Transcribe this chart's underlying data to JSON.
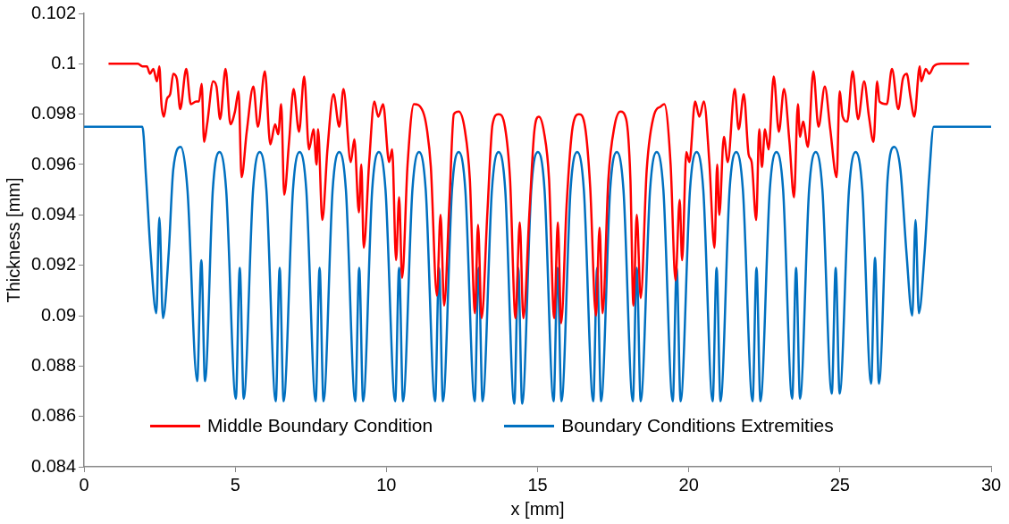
{
  "chart_data": {
    "type": "line",
    "xlabel": "x [mm]",
    "ylabel": "Thickness [mm]",
    "xlim": [
      0,
      30
    ],
    "xticks": [
      0,
      5,
      10,
      15,
      20,
      25,
      30
    ],
    "ylim": [
      0.084,
      0.102
    ],
    "yticks": [
      0.084,
      0.086,
      0.088,
      0.09,
      0.092,
      0.094,
      0.096,
      0.098,
      0.1,
      0.102
    ],
    "grid": false,
    "legend": "bottom",
    "marker": "none",
    "line_style": "solid",
    "series": [
      {
        "name": "Middle Boundary Condition",
        "color": "#ff0000",
        "x": [
          0.81,
          1.78,
          1.93,
          2.08,
          2.18,
          2.29,
          2.41,
          2.49,
          2.56,
          2.64,
          2.74,
          2.85,
          2.95,
          3.07,
          3.18,
          3.38,
          3.53,
          3.71,
          3.8,
          3.89,
          3.97,
          4.07,
          4.27,
          4.38,
          4.5,
          4.68,
          4.84,
          4.99,
          5.11,
          5.21,
          5.38,
          5.6,
          5.75,
          5.98,
          6.16,
          6.32,
          6.42,
          6.52,
          6.62,
          6.78,
          6.93,
          7.11,
          7.28,
          7.44,
          7.59,
          7.69,
          7.74,
          7.88,
          8.05,
          8.25,
          8.44,
          8.58,
          8.82,
          8.94,
          9.09,
          9.17,
          9.25,
          9.43,
          9.6,
          9.73,
          9.89,
          10.09,
          10.19,
          10.32,
          10.42,
          10.52,
          10.7,
          10.91,
          11.21,
          11.34,
          11.47,
          11.67,
          11.79,
          11.91,
          12.08,
          12.23,
          12.39,
          12.59,
          12.76,
          12.93,
          13.03,
          13.15,
          13.34,
          13.51,
          13.71,
          13.92,
          14.09,
          14.27,
          14.41,
          14.53,
          14.73,
          14.89,
          15.04,
          15.21,
          15.38,
          15.55,
          15.67,
          15.78,
          15.96,
          16.16,
          16.37,
          16.57,
          16.74,
          16.93,
          17.05,
          17.15,
          17.34,
          17.54,
          17.74,
          17.93,
          18.07,
          18.17,
          18.28,
          18.41,
          18.61,
          18.86,
          19.07,
          19.19,
          19.4,
          19.56,
          19.7,
          19.78,
          19.92,
          20.02,
          20.21,
          20.35,
          20.5,
          20.68,
          20.85,
          20.94,
          21.01,
          21.16,
          21.29,
          21.52,
          21.65,
          21.82,
          21.98,
          22.08,
          22.23,
          22.33,
          22.42,
          22.52,
          22.64,
          22.81,
          22.98,
          23.15,
          23.33,
          23.48,
          23.61,
          23.68,
          23.78,
          23.94,
          24.12,
          24.29,
          24.5,
          24.68,
          24.89,
          24.99,
          25.09,
          25.24,
          25.42,
          25.6,
          25.8,
          25.96,
          26.11,
          26.23,
          26.31,
          26.55,
          26.72,
          26.93,
          27.08,
          27.21,
          27.33,
          27.46,
          27.64,
          27.69,
          27.84,
          27.95,
          28.1,
          28.35,
          29.27
        ],
        "values": [
          0.1,
          0.1,
          0.0999,
          0.0999,
          0.0996,
          0.0998,
          0.0993,
          0.0999,
          0.0984,
          0.0979,
          0.0986,
          0.0988,
          0.0996,
          0.0994,
          0.0982,
          0.0998,
          0.0984,
          0.0985,
          0.0985,
          0.0992,
          0.0969,
          0.0976,
          0.0993,
          0.0991,
          0.0978,
          0.0998,
          0.0976,
          0.0981,
          0.0989,
          0.0955,
          0.0973,
          0.0991,
          0.0975,
          0.0997,
          0.0968,
          0.0976,
          0.0972,
          0.0984,
          0.0948,
          0.0969,
          0.099,
          0.0973,
          0.0995,
          0.0966,
          0.0974,
          0.096,
          0.0974,
          0.0938,
          0.0966,
          0.0988,
          0.0975,
          0.099,
          0.0961,
          0.097,
          0.0941,
          0.096,
          0.0927,
          0.0961,
          0.0985,
          0.0979,
          0.0984,
          0.0961,
          0.0966,
          0.0922,
          0.0947,
          0.0915,
          0.096,
          0.0984,
          0.0981,
          0.0974,
          0.0959,
          0.0908,
          0.094,
          0.0904,
          0.0944,
          0.098,
          0.0981,
          0.0974,
          0.0954,
          0.0901,
          0.0936,
          0.0899,
          0.0941,
          0.0976,
          0.098,
          0.0975,
          0.0954,
          0.0899,
          0.0937,
          0.0899,
          0.0941,
          0.0973,
          0.0979,
          0.0973,
          0.0954,
          0.0899,
          0.0937,
          0.0897,
          0.0944,
          0.0975,
          0.098,
          0.0975,
          0.0951,
          0.09,
          0.0935,
          0.0901,
          0.0954,
          0.0975,
          0.0981,
          0.0978,
          0.0954,
          0.0904,
          0.094,
          0.0907,
          0.0958,
          0.098,
          0.0983,
          0.0984,
          0.096,
          0.0914,
          0.0946,
          0.0922,
          0.0965,
          0.0961,
          0.0985,
          0.0979,
          0.0985,
          0.0961,
          0.0927,
          0.096,
          0.094,
          0.0971,
          0.0961,
          0.099,
          0.0974,
          0.0988,
          0.0964,
          0.0961,
          0.0938,
          0.0974,
          0.0959,
          0.0974,
          0.0966,
          0.0995,
          0.0973,
          0.099,
          0.0969,
          0.0947,
          0.0984,
          0.0971,
          0.0977,
          0.0967,
          0.0997,
          0.0975,
          0.0991,
          0.0974,
          0.0955,
          0.0989,
          0.0979,
          0.0977,
          0.0997,
          0.0978,
          0.0993,
          0.0979,
          0.0969,
          0.0993,
          0.0985,
          0.0984,
          0.0998,
          0.0982,
          0.0994,
          0.0996,
          0.0987,
          0.0979,
          0.0999,
          0.0993,
          0.0998,
          0.0996,
          0.0999,
          0.1,
          0.1
        ]
      },
      {
        "name": "Boundary Conditions Extremities",
        "color": "#0070c0",
        "x": [
          0,
          1.93,
          2.05,
          2.2,
          2.39,
          2.49,
          2.61,
          2.8,
          2.95,
          3.2,
          3.42,
          3.74,
          3.88,
          4,
          4.26,
          4.48,
          4.7,
          5.02,
          5.15,
          5.28,
          5.59,
          5.81,
          6.03,
          6.34,
          6.47,
          6.6,
          6.91,
          7.13,
          7.35,
          7.66,
          7.79,
          7.92,
          8.22,
          8.44,
          8.66,
          8.97,
          9.1,
          9.23,
          9.53,
          9.75,
          9.97,
          10.29,
          10.42,
          10.55,
          10.86,
          11.08,
          11.3,
          11.61,
          11.74,
          11.87,
          12.17,
          12.39,
          12.61,
          12.92,
          13.05,
          13.18,
          13.49,
          13.71,
          13.93,
          14.23,
          14.36,
          14.49,
          14.79,
          15.01,
          15.23,
          15.53,
          15.66,
          15.79,
          16.09,
          16.31,
          16.53,
          16.84,
          16.97,
          17.1,
          17.4,
          17.62,
          17.84,
          18.15,
          18.28,
          18.41,
          18.72,
          18.94,
          19.16,
          19.47,
          19.6,
          19.73,
          20.04,
          20.26,
          20.48,
          20.79,
          20.92,
          21.05,
          21.35,
          21.57,
          21.79,
          22.11,
          22.24,
          22.37,
          22.68,
          22.9,
          23.12,
          23.42,
          23.55,
          23.68,
          23.98,
          24.2,
          24.42,
          24.73,
          24.86,
          24.99,
          25.3,
          25.52,
          25.74,
          26.03,
          26.16,
          26.29,
          26.58,
          26.8,
          27,
          27.2,
          27.39,
          27.5,
          27.61,
          27.8,
          27.95,
          28.1,
          30
        ],
        "values": [
          0.0975,
          0.0975,
          0.0955,
          0.0925,
          0.0901,
          0.0939,
          0.0899,
          0.0925,
          0.0958,
          0.0967,
          0.095,
          0.0874,
          0.0922,
          0.0874,
          0.095,
          0.0965,
          0.095,
          0.0867,
          0.0919,
          0.0867,
          0.095,
          0.0965,
          0.095,
          0.0866,
          0.0919,
          0.0866,
          0.095,
          0.0965,
          0.095,
          0.0866,
          0.0919,
          0.0866,
          0.095,
          0.0965,
          0.095,
          0.0866,
          0.0919,
          0.0866,
          0.095,
          0.0965,
          0.095,
          0.0866,
          0.0919,
          0.0866,
          0.095,
          0.0965,
          0.095,
          0.0866,
          0.0919,
          0.0866,
          0.095,
          0.0965,
          0.095,
          0.0866,
          0.0919,
          0.0866,
          0.095,
          0.0965,
          0.095,
          0.0865,
          0.0919,
          0.0865,
          0.095,
          0.0965,
          0.095,
          0.0866,
          0.0919,
          0.0866,
          0.095,
          0.0965,
          0.095,
          0.0866,
          0.0919,
          0.0866,
          0.095,
          0.0965,
          0.095,
          0.0866,
          0.0919,
          0.0866,
          0.095,
          0.0965,
          0.095,
          0.0866,
          0.0919,
          0.0866,
          0.095,
          0.0965,
          0.095,
          0.0866,
          0.0919,
          0.0866,
          0.095,
          0.0965,
          0.095,
          0.0866,
          0.0919,
          0.0866,
          0.095,
          0.0965,
          0.095,
          0.0867,
          0.0919,
          0.0867,
          0.095,
          0.0965,
          0.095,
          0.0869,
          0.0919,
          0.0869,
          0.095,
          0.0965,
          0.095,
          0.0873,
          0.0923,
          0.0873,
          0.0955,
          0.0967,
          0.0958,
          0.0925,
          0.09,
          0.0938,
          0.0901,
          0.0925,
          0.0955,
          0.0975,
          0.0975
        ]
      }
    ]
  }
}
